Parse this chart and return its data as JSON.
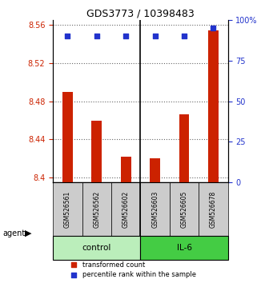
{
  "title": "GDS3773 / 10398483",
  "samples": [
    "GSM526561",
    "GSM526562",
    "GSM526602",
    "GSM526603",
    "GSM526605",
    "GSM526678"
  ],
  "bar_values": [
    8.49,
    8.46,
    8.422,
    8.42,
    8.466,
    8.554
  ],
  "percentile_values": [
    90,
    90,
    90,
    90,
    90,
    95
  ],
  "ylim_left": [
    8.395,
    8.565
  ],
  "ylim_right": [
    0,
    100
  ],
  "yticks_left": [
    8.4,
    8.44,
    8.48,
    8.52,
    8.56
  ],
  "ytick_labels_left": [
    "8.4",
    "8.44",
    "8.48",
    "8.52",
    "8.56"
  ],
  "yticks_right": [
    0,
    25,
    50,
    75,
    100
  ],
  "ytick_labels_right": [
    "0",
    "25",
    "50",
    "75",
    "100%"
  ],
  "bar_color": "#cc2200",
  "dot_color": "#2233cc",
  "control_color": "#bbeebb",
  "il6_color": "#44cc44",
  "sample_box_color": "#cccccc",
  "group_labels": [
    "control",
    "IL-6"
  ],
  "agent_label": "agent",
  "legend_bar_label": "transformed count",
  "legend_dot_label": "percentile rank within the sample",
  "title_color": "#000000",
  "left_axis_color": "#cc2200",
  "right_axis_color": "#2233cc",
  "bar_width": 0.35
}
